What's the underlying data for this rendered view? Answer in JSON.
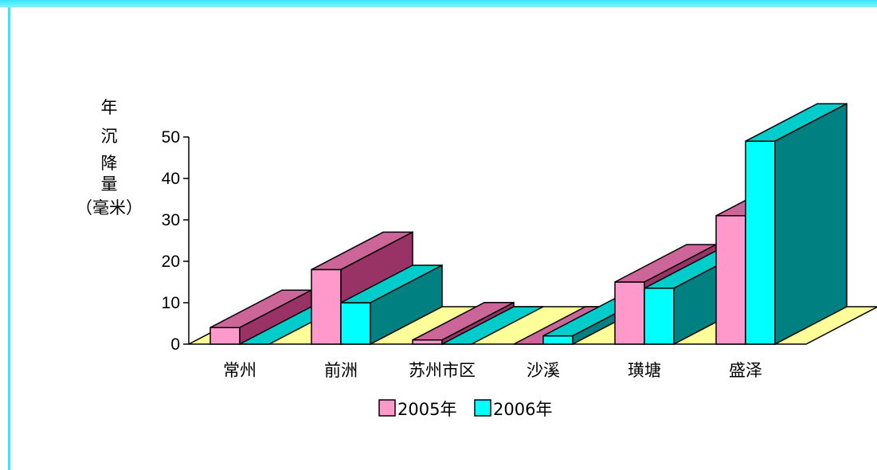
{
  "chart_data": {
    "type": "bar",
    "categories": [
      "常州",
      "前洲",
      "苏州市区",
      "沙溪",
      "璜塘",
      "盛泽"
    ],
    "series": [
      {
        "name": "2005年",
        "values": [
          4,
          18,
          1,
          0,
          15,
          31
        ],
        "color": "#ff99cc",
        "top_color": "#cc6699",
        "side_color": "#993366"
      },
      {
        "name": "2006年",
        "values": [
          0,
          10,
          0,
          2,
          13.5,
          49
        ],
        "color": "#00ffff",
        "top_color": "#00cccc",
        "side_color": "#008080"
      }
    ],
    "ylabel_lines": [
      "年",
      "沉",
      "降",
      "量",
      "（毫米）"
    ],
    "yticks": [
      0,
      10,
      20,
      30,
      40,
      50
    ],
    "ylim": [
      0,
      50
    ],
    "floor_color": "#ffff99",
    "legend_position": "bottom"
  }
}
